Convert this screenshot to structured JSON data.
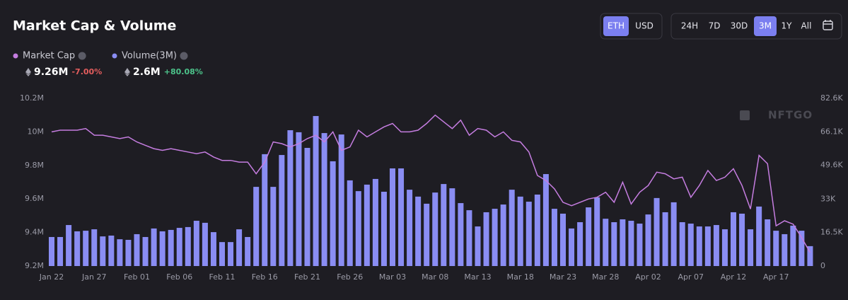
{
  "header": {
    "title": "Market Cap & Volume",
    "currency_options": [
      "ETH",
      "USD"
    ],
    "selected_currency": 0,
    "range_options": [
      "24H",
      "7D",
      "30D",
      "3M",
      "1Y",
      "All"
    ],
    "selected_range": 3
  },
  "stats": [
    {
      "value": "9.26M",
      "change": "-7.00%"
    },
    {
      "value": "2.6M",
      "change": "+80.08%"
    }
  ],
  "watermark": "NFTGO",
  "chart_data": {
    "type": "bar-line",
    "categories": [
      "Jan 22",
      null,
      null,
      null,
      null,
      "Jan 27",
      null,
      null,
      null,
      null,
      "Feb 01",
      null,
      null,
      null,
      null,
      "Feb 06",
      null,
      null,
      null,
      null,
      "Feb 11",
      null,
      null,
      null,
      null,
      "Feb 16",
      null,
      null,
      null,
      null,
      "Feb 21",
      null,
      null,
      null,
      null,
      "Feb 26",
      null,
      null,
      null,
      null,
      "Mar 03",
      null,
      null,
      null,
      null,
      "Mar 08",
      null,
      null,
      null,
      null,
      "Mar 13",
      null,
      null,
      null,
      null,
      "Mar 18",
      null,
      null,
      null,
      null,
      "Mar 23",
      null,
      null,
      null,
      null,
      "Mar 28",
      null,
      null,
      null,
      null,
      "Apr 02",
      null,
      null,
      null,
      null,
      "Apr 07",
      null,
      null,
      null,
      null,
      "Apr 12",
      null,
      null,
      null,
      null,
      "Apr 17",
      null,
      null,
      null,
      null
    ],
    "series": [
      {
        "name": "Market Cap",
        "type": "line",
        "color": "#c57de0",
        "values": [
          10.0,
          10.01,
          10.01,
          10.01,
          10.02,
          9.98,
          9.98,
          9.97,
          9.96,
          9.97,
          9.94,
          9.92,
          9.9,
          9.89,
          9.9,
          9.89,
          9.88,
          9.87,
          9.88,
          9.85,
          9.83,
          9.83,
          9.82,
          9.82,
          9.75,
          9.82,
          9.94,
          9.93,
          9.91,
          9.93,
          9.96,
          9.98,
          9.94,
          10.0,
          9.89,
          9.91,
          10.01,
          9.97,
          10.0,
          10.03,
          10.05,
          10.0,
          10.0,
          10.01,
          10.05,
          10.1,
          10.06,
          10.02,
          10.07,
          9.98,
          10.02,
          10.01,
          9.97,
          10.0,
          9.95,
          9.94,
          9.88,
          9.74,
          9.71,
          9.66,
          9.58,
          9.56,
          9.58,
          9.6,
          9.61,
          9.64,
          9.58,
          9.7,
          9.57,
          9.64,
          9.68,
          9.76,
          9.75,
          9.72,
          9.73,
          9.61,
          9.68,
          9.77,
          9.71,
          9.73,
          9.78,
          9.68,
          9.54,
          9.86,
          9.81,
          9.44,
          9.47,
          9.45,
          9.37,
          9.28
        ]
      },
      {
        "name": "Volume(3M)",
        "type": "bar",
        "axis": "y2",
        "color": "#8a8df3",
        "values": [
          14.3,
          14.3,
          20.2,
          17.1,
          17.4,
          18.1,
          14.6,
          15.0,
          13.2,
          12.9,
          15.7,
          14.3,
          18.5,
          17.1,
          17.8,
          18.8,
          19.2,
          22.3,
          21.3,
          16.7,
          11.8,
          11.8,
          18.1,
          14.3,
          39.0,
          55.1,
          39.0,
          54.7,
          66.9,
          65.9,
          58.2,
          73.9,
          65.5,
          51.6,
          64.8,
          42.2,
          36.9,
          40.1,
          42.9,
          36.6,
          48.1,
          48.1,
          37.6,
          34.2,
          30.7,
          36.2,
          40.4,
          38.3,
          31.0,
          27.5,
          19.5,
          26.5,
          28.2,
          30.3,
          37.6,
          34.2,
          31.7,
          35.2,
          45.3,
          28.2,
          25.8,
          18.5,
          21.6,
          28.9,
          33.8,
          23.3,
          21.6,
          23.0,
          22.3,
          20.9,
          25.4,
          33.5,
          26.5,
          31.4,
          21.6,
          20.9,
          19.5,
          19.5,
          20.2,
          18.1,
          26.5,
          25.8,
          18.1,
          29.3,
          23.0,
          17.4,
          15.7,
          19.9,
          17.4,
          9.8
        ]
      }
    ],
    "ylim": [
      9.2,
      10.2
    ],
    "yticks": [
      {
        "value": 9.2,
        "label": "9.2M"
      },
      {
        "value": 9.4,
        "label": "9.4M"
      },
      {
        "value": 9.6,
        "label": "9.6M"
      },
      {
        "value": 9.8,
        "label": "9.8M"
      },
      {
        "value": 10,
        "label": "10M"
      },
      {
        "value": 10.2,
        "label": "10.2M"
      }
    ],
    "y2lim": [
      0,
      82.6
    ],
    "y2ticks": [
      0,
      {
        "value": 16.5,
        "label": "16.5K"
      },
      {
        "value": 33,
        "label": "33K"
      },
      {
        "value": 49.6,
        "label": "49.6K"
      },
      {
        "value": 66.1,
        "label": "66.1K"
      },
      {
        "value": 82.6,
        "label": "82.6K"
      }
    ],
    "grid": false,
    "legend": "top-left"
  }
}
